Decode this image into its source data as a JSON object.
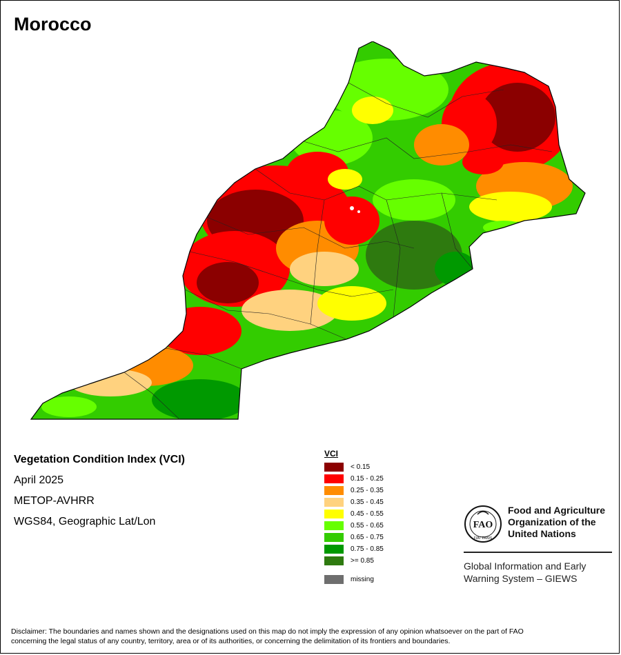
{
  "map": {
    "title": "Morocco",
    "product": "Vegetation Condition Index (VCI)",
    "date": "April 2025",
    "sensor": "METOP-AVHRR",
    "projection": "WGS84, Geographic Lat/Lon"
  },
  "legend": {
    "title": "VCI",
    "classes": [
      {
        "label": "< 0.15",
        "color": "#8b0000"
      },
      {
        "label": "0.15 - 0.25",
        "color": "#ff0000"
      },
      {
        "label": "0.25 - 0.35",
        "color": "#ff8c00"
      },
      {
        "label": "0.35 - 0.45",
        "color": "#ffd27f"
      },
      {
        "label": "0.45 - 0.55",
        "color": "#ffff00"
      },
      {
        "label": "0.55 - 0.65",
        "color": "#66ff00"
      },
      {
        "label": "0.65 - 0.75",
        "color": "#33cc00"
      },
      {
        "label": "0.75 - 0.85",
        "color": "#009900"
      },
      {
        "label": ">= 0.85",
        "color": "#2e7a0f"
      }
    ],
    "missing": {
      "label": "missing",
      "color": "#6e6e6e"
    }
  },
  "org": {
    "name_line1": "Food and Agriculture",
    "name_line2": "Organization of the",
    "name_line3": "United Nations",
    "system_line1": "Global Information and Early",
    "system_line2": "Warning System – GIEWS",
    "emblem_letters": "FAO",
    "emblem_motto": "FIAT PANIS"
  },
  "disclaimer": {
    "line1": "Disclaimer: The boundaries and names shown and the designations used on this map do not imply the expression of any opinion whatsoever on the part of FAO",
    "line2": "concerning the legal status of any country, territory, area or of its authorities, or concerning the delimitation of its frontiers and boundaries."
  }
}
